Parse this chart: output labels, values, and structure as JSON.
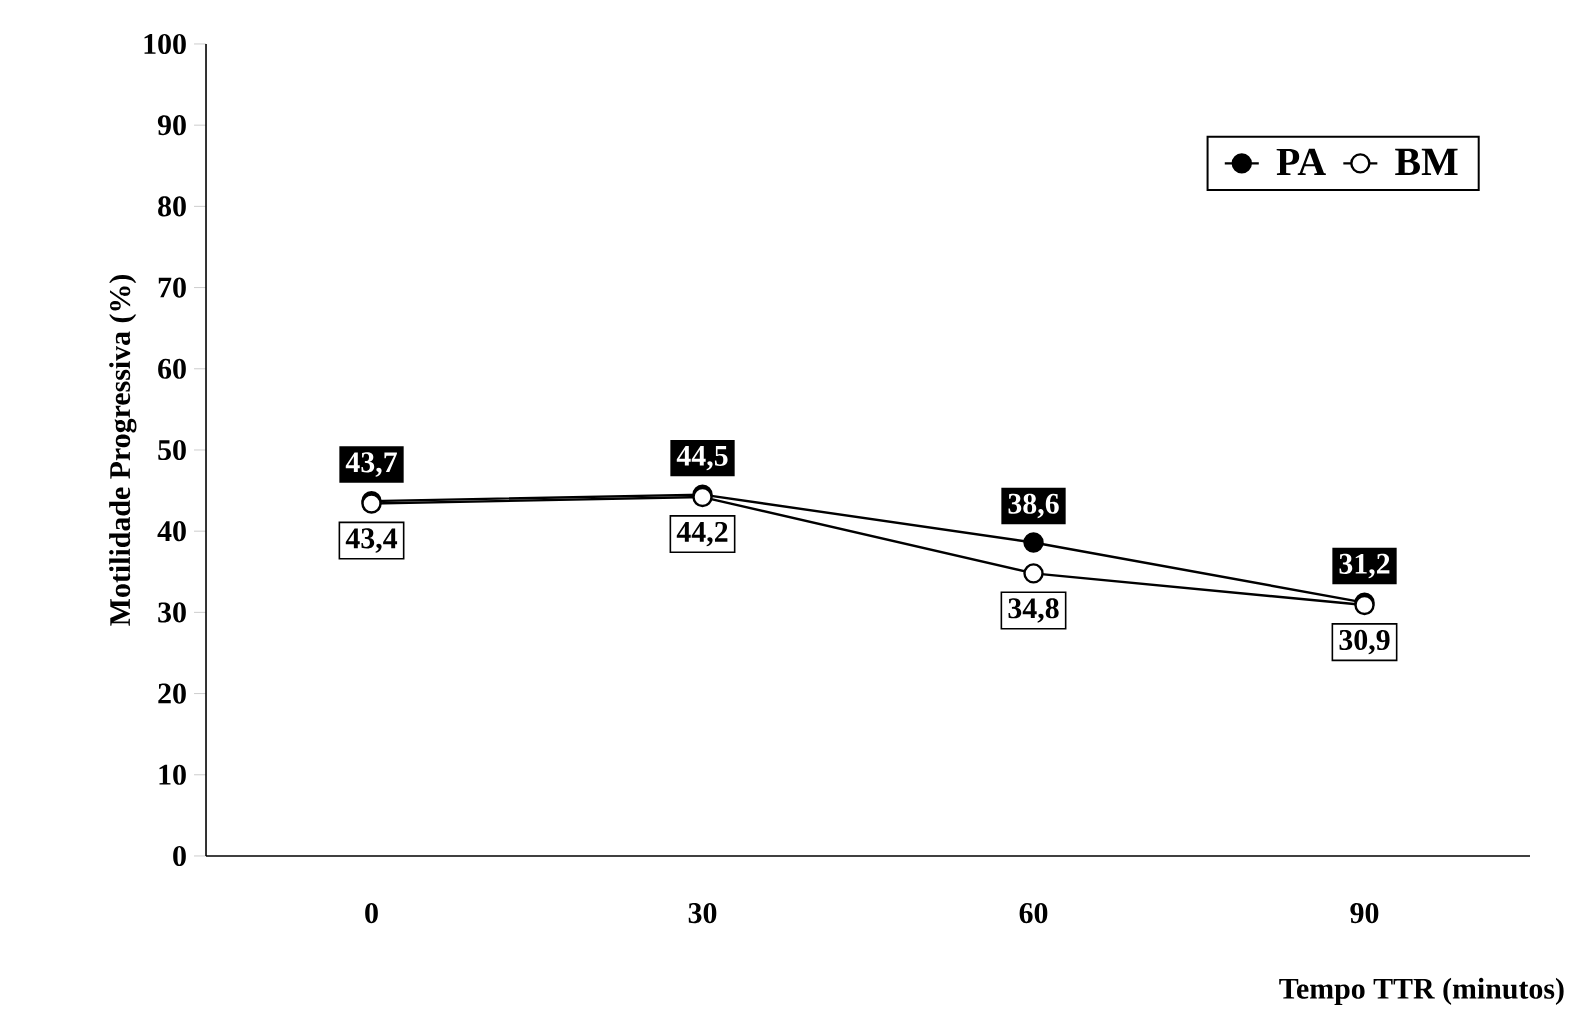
{
  "chart_data": {
    "type": "line",
    "xlabel": "Tempo TTR (minutos)",
    "ylabel": "Motilidade Progressiva (%)",
    "categories": [
      "0",
      "30",
      "60",
      "90"
    ],
    "series": [
      {
        "name": "PA",
        "color": "#000000",
        "values": [
          43.7,
          44.5,
          38.6,
          31.2
        ],
        "value_labels": [
          "43,7",
          "44,5",
          "38,6",
          "31,2"
        ]
      },
      {
        "name": "BM",
        "color": "#ffffff",
        "values": [
          43.4,
          44.2,
          34.8,
          30.9
        ],
        "value_labels": [
          "43,4",
          "44,2",
          "34,8",
          "30,9"
        ]
      }
    ],
    "ylim": [
      0,
      100
    ],
    "yticks": [
      0,
      10,
      20,
      30,
      40,
      50,
      60,
      70,
      80,
      90,
      100
    ],
    "legend": "top right",
    "marker": "circle",
    "line_style": "solid",
    "grid": false
  }
}
